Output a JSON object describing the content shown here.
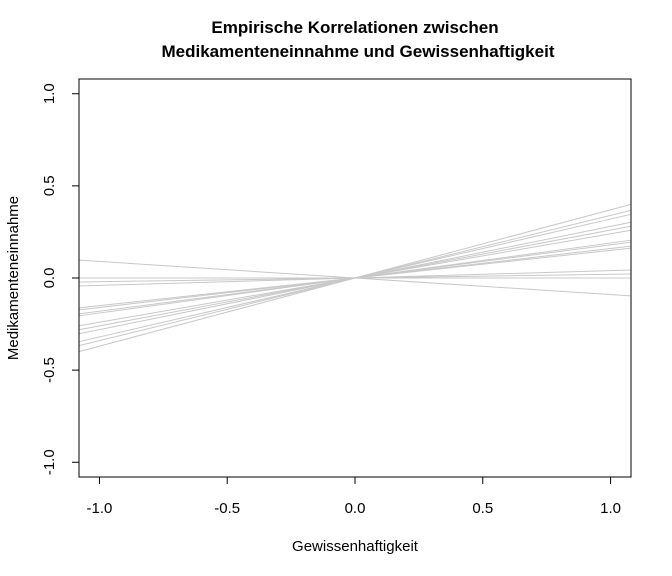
{
  "chart_data": {
    "type": "line",
    "title": "Empirische Korrelationen zwischen Medikamenteneinnahme und Gewissenhaftigkeit",
    "title_lines": [
      "Empirische Korrelationen zwischen",
      "Medikamenteneinnahme und Gewissenhaftigkeit"
    ],
    "xlabel": "Gewissenhaftigkeit",
    "ylabel": "Medikamenteneinnahme",
    "xlim": [
      -1.08,
      1.08
    ],
    "ylim": [
      -1.08,
      1.08
    ],
    "x_ticks": [
      -1.0,
      -0.5,
      0.0,
      0.5,
      1.0
    ],
    "x_tick_labels": [
      "-1.0",
      "-0.5",
      "0.0",
      "0.5",
      "1.0"
    ],
    "y_ticks": [
      -1.0,
      -0.5,
      0.0,
      0.5,
      1.0
    ],
    "y_tick_labels": [
      "-1.0",
      "-0.5",
      "0.0",
      "0.5",
      "1.0"
    ],
    "grid": false,
    "line_color": "#c8c8c8",
    "description_of_lines": "Each line passes through the origin with slope equal to an empirical correlation",
    "slopes": [
      0.37,
      0.34,
      0.32,
      0.28,
      0.26,
      0.24,
      0.19,
      0.18,
      0.16,
      0.15,
      0.04,
      0.02,
      0.0,
      -0.09
    ]
  }
}
